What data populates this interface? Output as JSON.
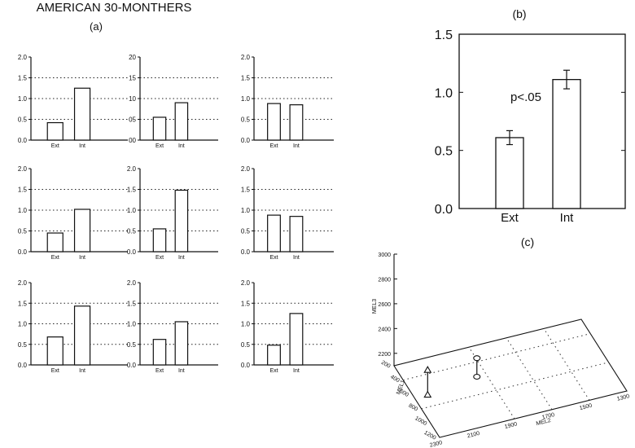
{
  "figure": {
    "title": "AMERICAN 30-MONTHERS",
    "panel_a_label": "(a)",
    "panel_b_label": "(b)",
    "panel_c_label": "(c)"
  },
  "chart_data": [
    {
      "panel": "a",
      "index": 1,
      "type": "bar",
      "categories": [
        "Ext",
        "Int"
      ],
      "values": [
        0.42,
        1.25
      ],
      "yticks": [
        "0.0",
        "0.5",
        "1.0",
        "1.5",
        "2.0"
      ],
      "ylim": [
        0,
        2.0
      ],
      "grid": "dotted horizontal"
    },
    {
      "panel": "a",
      "index": 2,
      "type": "bar",
      "categories": [
        "Ext",
        "Int"
      ],
      "values": [
        0.55,
        0.9
      ],
      "yticks": [
        "00",
        "05",
        "10",
        "15",
        "20"
      ],
      "ylim": [
        0,
        2.0
      ],
      "grid": "dotted horizontal"
    },
    {
      "panel": "a",
      "index": 3,
      "type": "bar",
      "categories": [
        "Ext",
        "Int"
      ],
      "values": [
        0.88,
        0.85
      ],
      "yticks": [
        "0.0",
        "0.5",
        "1.0",
        "1.5",
        "2.0"
      ],
      "ylim": [
        0,
        2.0
      ],
      "grid": "dotted horizontal"
    },
    {
      "panel": "a",
      "index": 4,
      "type": "bar",
      "categories": [
        "Ext",
        "Int"
      ],
      "values": [
        0.45,
        1.02
      ],
      "yticks": [
        "0.0",
        "0.5",
        "1.0",
        "1.5",
        "2.0"
      ],
      "ylim": [
        0,
        2.0
      ],
      "grid": "dotted horizontal"
    },
    {
      "panel": "a",
      "index": 5,
      "type": "bar",
      "categories": [
        "Ext",
        "Int"
      ],
      "values": [
        0.55,
        1.48
      ],
      "yticks": [
        "0.0",
        "0.5",
        "1.0",
        "1.5",
        "2.0"
      ],
      "ylim": [
        0,
        2.0
      ],
      "grid": "dotted horizontal"
    },
    {
      "panel": "a",
      "index": 6,
      "type": "bar",
      "categories": [
        "Ext",
        "Int"
      ],
      "values": [
        0.88,
        0.85
      ],
      "yticks": [
        "0.0",
        "0.5",
        "1.0",
        "1.5",
        "2.0"
      ],
      "ylim": [
        0,
        2.0
      ],
      "grid": "dotted horizontal"
    },
    {
      "panel": "a",
      "index": 7,
      "type": "bar",
      "categories": [
        "Ext",
        "Int"
      ],
      "values": [
        0.68,
        1.43
      ],
      "yticks": [
        "0.0",
        "0.5",
        "1.0",
        "1.5",
        "2.0"
      ],
      "ylim": [
        0,
        2.0
      ],
      "grid": "dotted horizontal"
    },
    {
      "panel": "a",
      "index": 8,
      "type": "bar",
      "categories": [
        "Ext",
        "Int"
      ],
      "values": [
        0.62,
        1.05
      ],
      "yticks": [
        "0.0",
        "0.5",
        "1.0",
        "1.5",
        "2.0"
      ],
      "ylim": [
        0,
        2.0
      ],
      "grid": "dotted horizontal"
    },
    {
      "panel": "a",
      "index": 9,
      "type": "bar",
      "categories": [
        "Ext",
        "Int"
      ],
      "values": [
        0.48,
        1.25
      ],
      "yticks": [
        "0.0",
        "0.5",
        "1.0",
        "1.5",
        "2.0"
      ],
      "ylim": [
        0,
        2.0
      ],
      "grid": "dotted horizontal"
    },
    {
      "panel": "b",
      "type": "bar",
      "categories": [
        "Ext",
        "Int"
      ],
      "values": [
        0.61,
        1.11
      ],
      "errors": [
        0.06,
        0.08
      ],
      "yticks": [
        "0.0",
        "0.5",
        "1.0",
        "1.5"
      ],
      "ylim": [
        0,
        1.5
      ],
      "annotation": "p<.05",
      "grid": "none"
    },
    {
      "panel": "c",
      "type": "scatter",
      "xlabel": "MEL2",
      "ylabel": "MEL1",
      "zlabel": "MEL3",
      "x_ticks": [
        "2300",
        "2100",
        "1900",
        "1700",
        "1500",
        "1300"
      ],
      "y_ticks": [
        "200",
        "400",
        "600",
        "800",
        "1000",
        "1200"
      ],
      "z_ticks": [
        "2200",
        "2400",
        "2600",
        "2800",
        "3000"
      ],
      "points": [
        {
          "marker": "triangle",
          "x": 2230,
          "y": 650,
          "z": 2300
        },
        {
          "marker": "circle",
          "x": 1950,
          "y": 580,
          "z": 2250
        }
      ]
    }
  ]
}
